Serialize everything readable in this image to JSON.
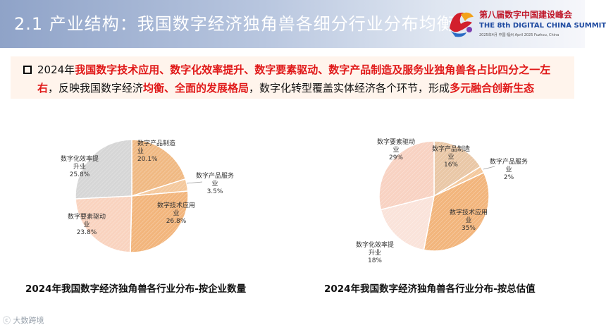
{
  "header": {
    "title": "2.1  产业结构：我国数字经济独角兽各细分行业分布均衡",
    "logo": {
      "mark_icon": "digital-china-summit-logo",
      "name_cn": "第八届数字中国建设峰会",
      "name_en": "THE 8th DIGITAL CHINA SUMMIT",
      "date_line": "2025年4月  中国·福州    April 2025  Fuzhou, China"
    }
  },
  "summary": {
    "bullet_icon": "square-bullet-icon",
    "segments": [
      {
        "text": "2024年",
        "highlight": false
      },
      {
        "text": "我国数字技术应用、数字化效率提升、数字要素驱动、数字产品制造及服务业独角兽各占比四分之一左右",
        "highlight": true
      },
      {
        "text": "，反映我国数字经济",
        "highlight": false
      },
      {
        "text": "均衡、全面的发展格局",
        "highlight": true
      },
      {
        "text": "，数字化转型覆盖实体经济各个环节，形成",
        "highlight": false
      },
      {
        "text": "多元融合创新生态",
        "highlight": true
      }
    ]
  },
  "charts": [
    {
      "title": "2024年我国数字经济独角兽各行业分布-按企业数量",
      "chart_data": {
        "type": "pie",
        "slices": [
          {
            "label": "数字产品制造业",
            "value": 20.1,
            "display": "20.1%",
            "color": "#f0b983"
          },
          {
            "label": "数字产品服务业",
            "value": 3.5,
            "display": "3.5%",
            "color": "#f4c89c"
          },
          {
            "label": "数字技术应用业",
            "value": 26.8,
            "display": "26.8%",
            "color": "#f2b57c"
          },
          {
            "label": "数字要素驱动业",
            "value": 23.8,
            "display": "23.8%",
            "color": "#f9d3bf"
          },
          {
            "label": "数字化效率提升业",
            "value": 25.8,
            "display": "25.8%",
            "color": "#d6d6d6"
          }
        ]
      }
    },
    {
      "title": "2024年我国数字经济独角兽各行业分布-按总估值",
      "chart_data": {
        "type": "pie",
        "slices": [
          {
            "label": "数字产品制造业",
            "value": 16,
            "display": "16%",
            "color": "#e9c7a6"
          },
          {
            "label": "数字产品服务业",
            "value": 2,
            "display": "2%",
            "color": "#f4c89c"
          },
          {
            "label": "数字技术应用业",
            "value": 35,
            "display": "35%",
            "color": "#f2b57c"
          },
          {
            "label": "数字化效率提升业",
            "value": 18,
            "display": "18%",
            "color": "#fae3da"
          },
          {
            "label": "数字要素驱动业",
            "value": 29,
            "display": "29%",
            "color": "#f8d2c2"
          }
        ]
      }
    }
  ],
  "footer": {
    "brand": "大数跨境"
  }
}
